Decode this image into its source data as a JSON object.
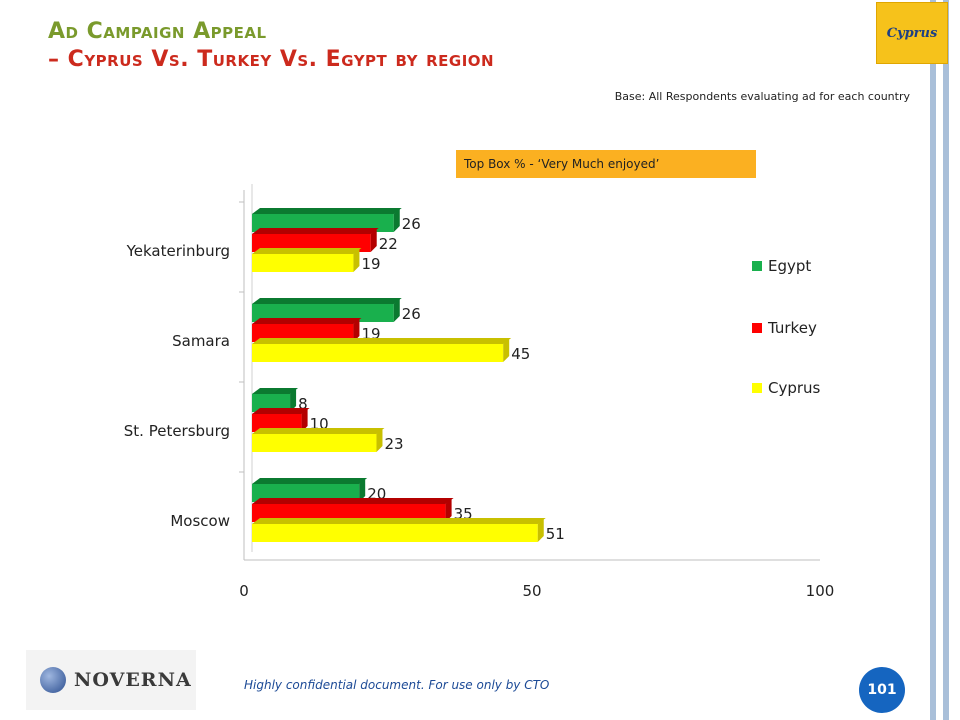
{
  "title": {
    "line1": "Ad Campaign Appeal",
    "line2_dash": "–",
    "line2_main": "Cyprus Vs. Turkey Vs. Egypt",
    "line2_suffix": "by region"
  },
  "base_note": "Base: All Respondents evaluating ad for each country",
  "topbox_label": "Top Box % - ‘Very Much enjoyed’",
  "footer_note": "Highly confidential document. For use only by CTO",
  "page_number": "101",
  "logo_cyprus": "Cyprus",
  "logo_noverna": "NOVERNA",
  "colors": {
    "egypt": "#19b04d",
    "turkey": "#ff0000",
    "cyprus": "#ffff00"
  },
  "chart_data": {
    "type": "bar",
    "orientation": "horizontal",
    "categories": [
      "Yekaterinburg",
      "Samara",
      "St. Petersburg",
      "Moscow"
    ],
    "series": [
      {
        "name": "Egypt",
        "values": [
          26,
          26,
          8,
          20
        ]
      },
      {
        "name": "Turkey",
        "values": [
          22,
          19,
          10,
          35
        ]
      },
      {
        "name": "Cyprus",
        "values": [
          19,
          45,
          23,
          51
        ]
      }
    ],
    "xlim": [
      0,
      100
    ],
    "xticks": [
      0,
      50,
      100
    ],
    "legend": "right",
    "grid": false
  }
}
